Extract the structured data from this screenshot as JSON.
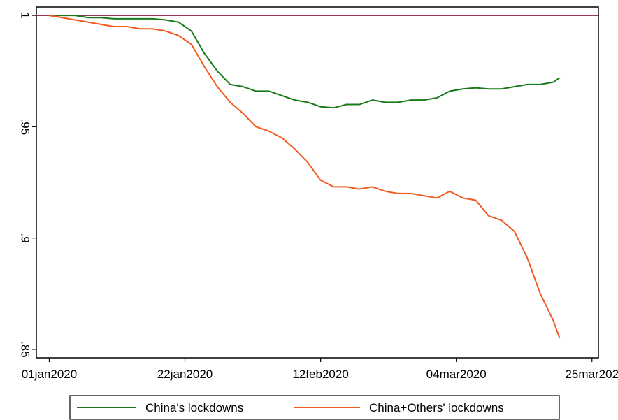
{
  "chart_data": {
    "type": "line",
    "x": [
      "2020-01-01",
      "2020-01-03",
      "2020-01-05",
      "2020-01-07",
      "2020-01-09",
      "2020-01-11",
      "2020-01-13",
      "2020-01-15",
      "2020-01-17",
      "2020-01-19",
      "2020-01-21",
      "2020-01-23",
      "2020-01-25",
      "2020-01-27",
      "2020-01-29",
      "2020-01-31",
      "2020-02-02",
      "2020-02-04",
      "2020-02-06",
      "2020-02-08",
      "2020-02-10",
      "2020-02-12",
      "2020-02-14",
      "2020-02-16",
      "2020-02-18",
      "2020-02-20",
      "2020-02-22",
      "2020-02-24",
      "2020-02-26",
      "2020-02-28",
      "2020-03-01",
      "2020-03-03",
      "2020-03-05",
      "2020-03-07",
      "2020-03-09",
      "2020-03-11",
      "2020-03-13",
      "2020-03-15",
      "2020-03-17",
      "2020-03-19",
      "2020-03-20"
    ],
    "series": [
      {
        "name": "China's lockdowns",
        "color": "#1a7a1a",
        "values": [
          1,
          1,
          1,
          0.999,
          0.999,
          0.9985,
          0.9985,
          0.9985,
          0.9985,
          0.998,
          0.997,
          0.993,
          0.983,
          0.975,
          0.969,
          0.968,
          0.966,
          0.966,
          0.964,
          0.962,
          0.961,
          0.959,
          0.9585,
          0.96,
          0.96,
          0.962,
          0.961,
          0.961,
          0.962,
          0.962,
          0.963,
          0.966,
          0.967,
          0.9675,
          0.967,
          0.967,
          0.968,
          0.969,
          0.969,
          0.97,
          0.972
        ]
      },
      {
        "name": "China+Others' lockdowns",
        "color": "#f25a1e",
        "values": [
          1,
          0.999,
          0.998,
          0.997,
          0.996,
          0.995,
          0.995,
          0.994,
          0.994,
          0.993,
          0.991,
          0.987,
          0.977,
          0.968,
          0.961,
          0.956,
          0.95,
          0.948,
          0.945,
          0.94,
          0.934,
          0.926,
          0.923,
          0.923,
          0.922,
          0.923,
          0.921,
          0.92,
          0.92,
          0.919,
          0.918,
          0.921,
          0.918,
          0.917,
          0.91,
          0.908,
          0.903,
          0.891,
          0.875,
          0.863,
          0.855
        ]
      }
    ],
    "reference_line": {
      "value": 1,
      "color": "#8b1a3a"
    },
    "xlim": [
      "2019-12-30",
      "2020-03-26"
    ],
    "xticks": [
      {
        "value": "2020-01-01",
        "label": "01jan2020"
      },
      {
        "value": "2020-01-22",
        "label": "22jan2020"
      },
      {
        "value": "2020-02-12",
        "label": "12feb2020"
      },
      {
        "value": "2020-03-04",
        "label": "04mar2020"
      },
      {
        "value": "2020-03-25",
        "label": "25mar202"
      }
    ],
    "ylim": [
      0.8462,
      1.0038
    ],
    "yticks": [
      {
        "value": 0.85,
        "label": ".85"
      },
      {
        "value": 0.9,
        "label": ".9"
      },
      {
        "value": 0.95,
        "label": ".95"
      },
      1
    ],
    "legend": "bottom"
  }
}
